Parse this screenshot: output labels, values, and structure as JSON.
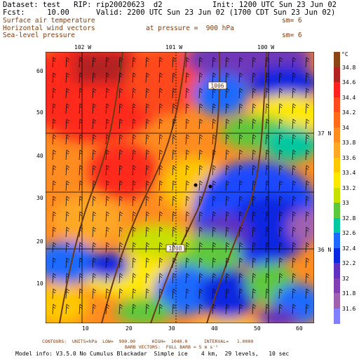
{
  "header": {
    "dataset": "Dataset: test   RIP: rip20020623  d2",
    "init": "Init: 1200 UTC Sun 23 Jun 02",
    "fcst": "Fcst:     10.00",
    "valid": "Valid: 2200 UTC Sun 23 Jun 02 (1700 CDT Sun 23 Jun 02)",
    "field1": "Surface air temperature",
    "field2": "Horizontal wind vectors",
    "pressure": "at pressure =  900 hPa",
    "field3": "Sea-level pressure",
    "sm1": "sm= 6",
    "sm2": "sm= 6"
  },
  "map": {
    "lon_labels": [
      "102 W",
      "101 W",
      "100 W"
    ],
    "lat_labels_right": [
      "37 N",
      "36 N"
    ],
    "y_ticks": [
      "60",
      "50",
      "40",
      "30",
      "20",
      "10"
    ],
    "x_ticks": [
      "10",
      "20",
      "30",
      "40",
      "50",
      "60"
    ],
    "isobar_labels": [
      "1006",
      "1008"
    ]
  },
  "colorbar": {
    "unit": "°C",
    "labels": [
      "34.8",
      "34.6",
      "34.4",
      "34.2",
      "34",
      "33.8",
      "33.6",
      "33.4",
      "33.2",
      "33",
      "32.8",
      "32.6",
      "32.4",
      "32.2",
      "32",
      "31.8",
      "31.6"
    ],
    "colors": [
      "#8b4513",
      "#b22222",
      "#ff2020",
      "#ff4a1c",
      "#ff6a18",
      "#ff8c20",
      "#ffa826",
      "#ffc800",
      "#ffe800",
      "#c8e000",
      "#5ec83c",
      "#00c8a0",
      "#1c6aff",
      "#0a28e0",
      "#6030c0",
      "#8040b0",
      "#a060b0",
      "#8080ff"
    ]
  },
  "footer": {
    "contours": "CONTOURS:  UNITS=hPa  LOW=  990.00      HIGH=  1040.0      INTERVAL=   1.0000",
    "barbs": "BARB VECTORS:  FULL BARB = 5 m s⁻¹",
    "model_info": "Model info: V3.5.0 No Cumulus Blackadar  Simple ice    4 km,  29 levels,   10 sec"
  }
}
